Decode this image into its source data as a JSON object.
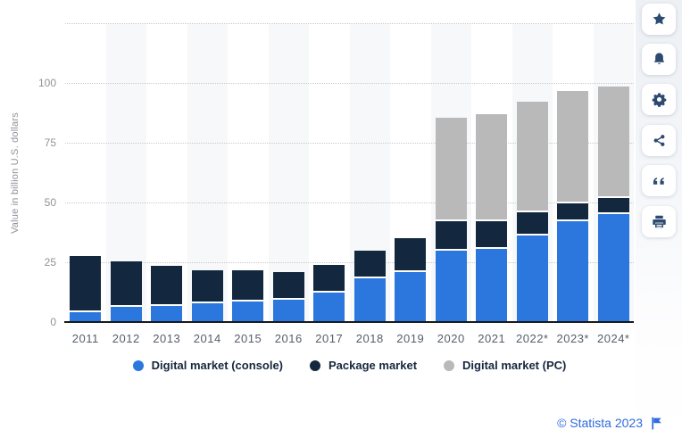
{
  "chart_data": {
    "type": "bar",
    "stacked": true,
    "ylabel": "Value in billion U.S. dollars",
    "ylim": [
      0,
      125
    ],
    "yticks": [
      0,
      25,
      50,
      75,
      100
    ],
    "gridline_values": [
      25,
      50,
      75,
      100,
      125
    ],
    "grid": "horizontal-dotted",
    "legend_position": "bottom-center",
    "categories": [
      "2011",
      "2012",
      "2013",
      "2014",
      "2015",
      "2016",
      "2017",
      "2018",
      "2019",
      "2020",
      "2021",
      "2022*",
      "2023*",
      "2024*"
    ],
    "series": [
      {
        "name": "Digital market (console)",
        "color": "#2b77dd",
        "values": [
          5,
          7,
          7.5,
          8.5,
          9.5,
          10,
          13,
          19,
          21.5,
          30.5,
          31.5,
          37,
          43,
          46
        ]
      },
      {
        "name": "Package market",
        "color": "#13283f",
        "values": [
          22.5,
          18.5,
          16,
          13,
          12,
          11,
          11,
          11,
          13.5,
          12.5,
          11.5,
          9.5,
          7.5,
          6.5
        ]
      },
      {
        "name": "Digital market (PC)",
        "color": "#b9b9b9",
        "values": [
          0,
          0,
          0,
          0,
          0,
          0,
          0,
          0,
          0,
          42.5,
          44,
          45.5,
          46,
          46
        ]
      }
    ]
  },
  "sidebar": {
    "buttons": [
      {
        "label": "favorite",
        "icon": "star-icon"
      },
      {
        "label": "alerts",
        "icon": "bell-icon"
      },
      {
        "label": "settings",
        "icon": "gear-icon"
      },
      {
        "label": "share",
        "icon": "share-icon"
      },
      {
        "label": "cite",
        "icon": "quote-icon"
      },
      {
        "label": "print",
        "icon": "printer-icon"
      }
    ]
  },
  "footer": {
    "credit": "© Statista 2023"
  }
}
